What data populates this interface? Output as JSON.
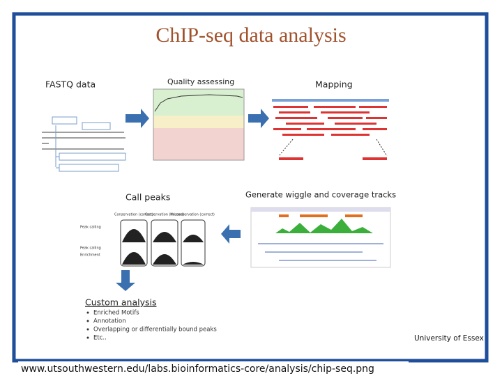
{
  "title": "ChIP-seq data analysis",
  "steps": [
    {
      "label": "FASTQ data"
    },
    {
      "label": "Quality assessing"
    },
    {
      "label": "Mapping"
    },
    {
      "label": "Generate wiggle and coverage tracks"
    },
    {
      "label": "Call peaks"
    }
  ],
  "call_peaks_panel": {
    "columns": [
      "Conservation (correct)",
      "Conservation (missed)",
      "No conservation (correct)"
    ],
    "rows": [
      "Peak calling",
      "Peak calling",
      "Enrichment"
    ]
  },
  "custom_analysis": {
    "heading": "Custom analysis",
    "bullets": [
      "Enriched Motifs",
      "Annotation",
      "Overlapping or differentially bound peaks",
      "Etc.."
    ]
  },
  "institution": "University of Essex",
  "source": "www.utsouthwestern.edu/labs.bioinformatics-core/analysis/chip-seq.png"
}
